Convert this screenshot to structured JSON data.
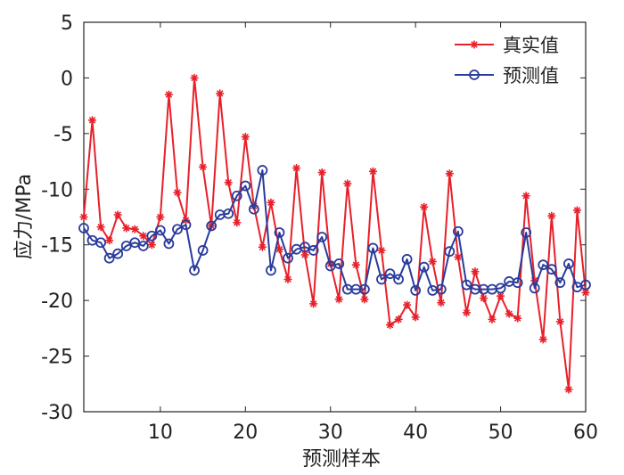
{
  "chart_data": {
    "type": "line",
    "xlabel": "预测样本",
    "ylabel": "应力/MPa",
    "xlim": [
      1,
      60
    ],
    "ylim": [
      -30,
      5
    ],
    "xticks": [
      10,
      20,
      30,
      40,
      50,
      60
    ],
    "yticks": [
      5,
      0,
      -5,
      -10,
      -15,
      -20,
      -25,
      -30
    ],
    "grid": false,
    "legend_position": "top-right",
    "x": [
      1,
      2,
      3,
      4,
      5,
      6,
      7,
      8,
      9,
      10,
      11,
      12,
      13,
      14,
      15,
      16,
      17,
      18,
      19,
      20,
      21,
      22,
      23,
      24,
      25,
      26,
      27,
      28,
      29,
      30,
      31,
      32,
      33,
      34,
      35,
      36,
      37,
      38,
      39,
      40,
      41,
      42,
      43,
      44,
      45,
      46,
      47,
      48,
      49,
      50,
      51,
      52,
      53,
      54,
      55,
      56,
      57,
      58,
      59,
      60
    ],
    "series": [
      {
        "name": "真实值",
        "color": "#e8202a",
        "marker": "asterisk",
        "values": [
          -12.5,
          -3.8,
          -13.4,
          -14.6,
          -12.3,
          -13.5,
          -13.6,
          -14.2,
          -15.0,
          -12.5,
          -1.5,
          -10.3,
          -12.8,
          0.0,
          -8.0,
          -13.3,
          -1.4,
          -9.4,
          -13.0,
          -5.3,
          -11.5,
          -15.2,
          -11.2,
          -15.4,
          -18.1,
          -8.1,
          -15.9,
          -20.3,
          -8.5,
          -16.7,
          -19.9,
          -9.5,
          -16.8,
          -19.9,
          -8.4,
          -15.5,
          -22.2,
          -21.7,
          -20.4,
          -21.5,
          -11.6,
          -16.5,
          -20.2,
          -8.6,
          -16.1,
          -21.1,
          -17.4,
          -19.8,
          -21.7,
          -19.6,
          -21.2,
          -21.6,
          -10.6,
          -18.2,
          -23.5,
          -12.4,
          -21.9,
          -28.0,
          -11.9,
          -19.3
        ]
      },
      {
        "name": "预测值",
        "color": "#2a3b9c",
        "marker": "circle",
        "values": [
          -13.5,
          -14.6,
          -14.8,
          -16.2,
          -15.8,
          -15.1,
          -14.8,
          -15.1,
          -14.2,
          -13.7,
          -14.9,
          -13.6,
          -13.2,
          -17.3,
          -15.5,
          -13.3,
          -12.3,
          -12.2,
          -10.6,
          -9.7,
          -11.8,
          -8.3,
          -17.3,
          -13.9,
          -16.2,
          -15.4,
          -15.2,
          -15.5,
          -14.3,
          -16.9,
          -16.7,
          -19.0,
          -19.0,
          -19.0,
          -15.3,
          -18.1,
          -17.6,
          -18.1,
          -16.3,
          -19.1,
          -17.0,
          -19.1,
          -19.0,
          -15.6,
          -13.8,
          -18.6,
          -19.0,
          -19.0,
          -19.0,
          -18.9,
          -18.3,
          -18.4,
          -13.9,
          -18.9,
          -16.8,
          -17.2,
          -18.4,
          -16.7,
          -18.8,
          -18.6
        ]
      }
    ]
  }
}
